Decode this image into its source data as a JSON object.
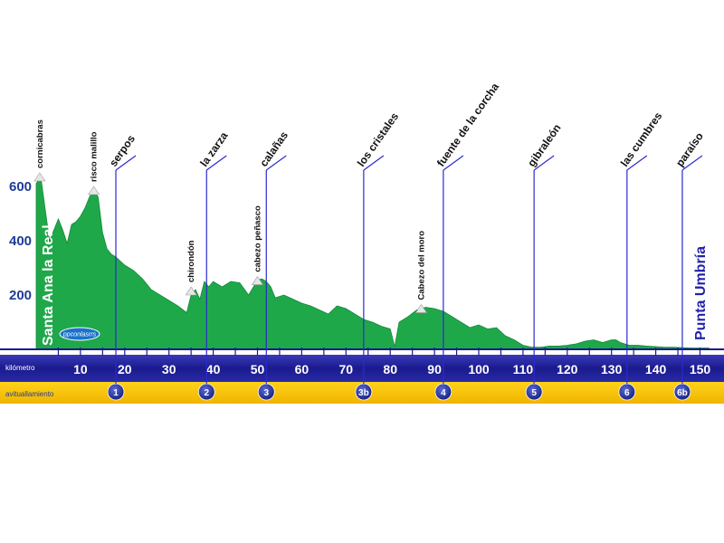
{
  "chart_data": {
    "type": "area",
    "title": "",
    "xlabel": "kilómetro",
    "ylabel": "",
    "xlim": [
      0,
      155
    ],
    "ylim": [
      0,
      700
    ],
    "y_ticks": [
      200,
      400,
      600
    ],
    "x_ticks": [
      10,
      20,
      30,
      40,
      50,
      60,
      70,
      80,
      90,
      100,
      110,
      120,
      130,
      140,
      150
    ],
    "fill_color": "#1fa84a",
    "band_colors": {
      "km": "#22229a",
      "stops": "#f5c400"
    },
    "start_label": "Santa Ana la Real",
    "end_label": "Punta Umbría",
    "band_labels": {
      "km": "kilómetro",
      "stops": "avituallamiento"
    },
    "logo_text": "ppconlasrrs",
    "profile": {
      "x": [
        0,
        1,
        2,
        3,
        4,
        5,
        6,
        7,
        8,
        9,
        10,
        11,
        12,
        13,
        14,
        15,
        16,
        17,
        18,
        20,
        22,
        24,
        26,
        28,
        30,
        32,
        34,
        35,
        36,
        37,
        38,
        39,
        40,
        42,
        44,
        46,
        48,
        50,
        51,
        52,
        53,
        54,
        56,
        58,
        60,
        62,
        64,
        66,
        68,
        70,
        72,
        74,
        76,
        78,
        80,
        81,
        82,
        84,
        86,
        88,
        90,
        92,
        94,
        96,
        98,
        100,
        102,
        104,
        106,
        108,
        110,
        112,
        114,
        116,
        118,
        120,
        122,
        124,
        126,
        128,
        130,
        131,
        132,
        134,
        136,
        138,
        140,
        142,
        144,
        146,
        148,
        150,
        152
      ],
      "y": [
        610,
        640,
        520,
        400,
        440,
        480,
        440,
        390,
        460,
        470,
        490,
        520,
        560,
        590,
        560,
        430,
        370,
        350,
        340,
        310,
        290,
        260,
        220,
        200,
        180,
        160,
        135,
        200,
        220,
        185,
        250,
        230,
        250,
        230,
        250,
        245,
        200,
        255,
        260,
        250,
        230,
        190,
        200,
        185,
        170,
        160,
        145,
        130,
        160,
        150,
        130,
        110,
        100,
        85,
        75,
        10,
        100,
        120,
        145,
        155,
        150,
        140,
        120,
        100,
        80,
        90,
        75,
        80,
        50,
        35,
        15,
        8,
        8,
        12,
        12,
        15,
        20,
        30,
        35,
        25,
        35,
        35,
        25,
        15,
        15,
        12,
        10,
        8,
        8,
        6,
        5,
        5,
        5
      ]
    },
    "peaks": [
      {
        "name": "cornicabras",
        "km": 0.8,
        "alt": 640
      },
      {
        "name": "risco malillo",
        "km": 13,
        "alt": 590
      },
      {
        "name": "chirondón",
        "km": 35,
        "alt": 220
      },
      {
        "name": "cabezo peñasco",
        "km": 50,
        "alt": 258
      },
      {
        "name": "Cabezo del moro",
        "km": 87,
        "alt": 155
      }
    ],
    "waypoints": [
      {
        "name": "serpos",
        "km": 18,
        "stop": "1"
      },
      {
        "name": "la zarza",
        "km": 38.5,
        "stop": "2"
      },
      {
        "name": "calañas",
        "km": 52,
        "stop": "3"
      },
      {
        "name": "los cristales",
        "km": 74,
        "stop": "3b"
      },
      {
        "name": "fuente de la corcha",
        "km": 92,
        "stop": "4"
      },
      {
        "name": "gibraleón",
        "km": 112.5,
        "stop": "5"
      },
      {
        "name": "las cumbres",
        "km": 133.5,
        "stop": "6"
      },
      {
        "name": "paraíso",
        "km": 146,
        "stop": "6b"
      }
    ]
  }
}
